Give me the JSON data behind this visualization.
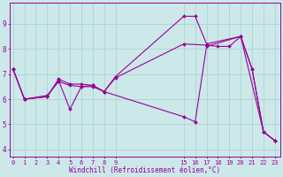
{
  "bg_color": "#cce8e8",
  "line_color": "#990099",
  "grid_color": "#aad4d4",
  "xlabel": "Windchill (Refroidissement éolien,°C)",
  "x_ticks": [
    0,
    1,
    2,
    3,
    4,
    5,
    6,
    7,
    8,
    9,
    15,
    16,
    17,
    18,
    19,
    20,
    21,
    22,
    23
  ],
  "y_ticks": [
    4,
    5,
    6,
    7,
    8,
    9
  ],
  "ylim": [
    3.7,
    9.85
  ],
  "xlim": [
    -0.3,
    23.5
  ],
  "series1": {
    "x": [
      0,
      1,
      3,
      4,
      5,
      6,
      7,
      8,
      15,
      16,
      17,
      20,
      21,
      22,
      23
    ],
    "y": [
      7.2,
      6.0,
      6.1,
      6.75,
      5.6,
      6.5,
      6.55,
      6.3,
      5.3,
      5.1,
      8.1,
      8.5,
      7.2,
      4.7,
      4.35
    ]
  },
  "series2": {
    "x": [
      0,
      1,
      3,
      4,
      5,
      6,
      7,
      8,
      9,
      15,
      16,
      17,
      20,
      21,
      22,
      23
    ],
    "y": [
      7.2,
      6.0,
      6.1,
      6.8,
      6.6,
      6.6,
      6.55,
      6.3,
      6.9,
      9.3,
      9.3,
      8.2,
      8.5,
      7.2,
      4.7,
      4.35
    ]
  },
  "series3": {
    "x": [
      0,
      1,
      3,
      4,
      5,
      6,
      7,
      8,
      9,
      15,
      17,
      18,
      19,
      20,
      22,
      23
    ],
    "y": [
      7.2,
      6.0,
      6.15,
      6.7,
      6.55,
      6.5,
      6.5,
      6.3,
      6.85,
      8.2,
      8.15,
      8.1,
      8.1,
      8.5,
      4.7,
      4.35
    ]
  }
}
